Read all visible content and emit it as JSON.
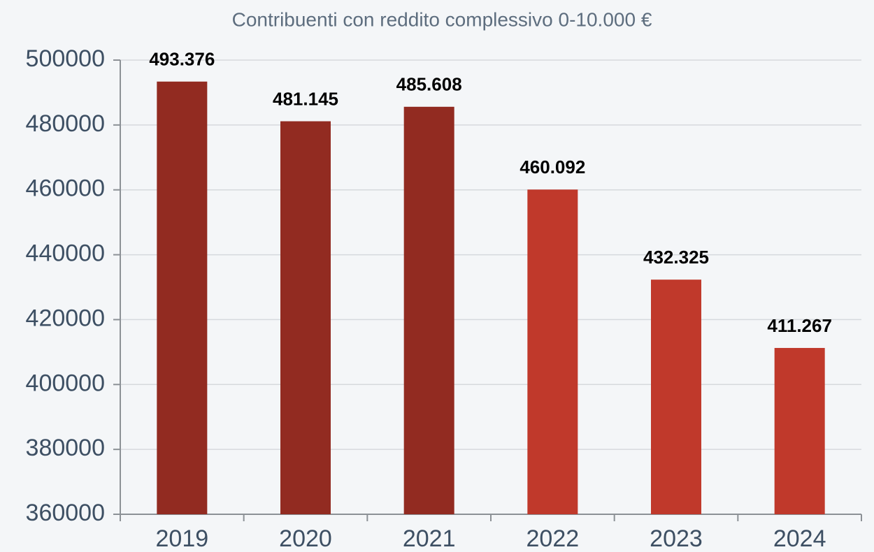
{
  "chart_data": {
    "type": "bar",
    "title": "Contribuenti con reddito complessivo 0-10.000 €",
    "categories": [
      "2019",
      "2020",
      "2021",
      "2022",
      "2023",
      "2024"
    ],
    "values": [
      493376,
      481145,
      485608,
      460092,
      432325,
      411267
    ],
    "value_labels": [
      "493.376",
      "481.145",
      "485.608",
      "460.092",
      "432.325",
      "411.267"
    ],
    "colors": [
      "#922b21",
      "#922b21",
      "#922b21",
      "#c0392b",
      "#c0392b",
      "#c0392b"
    ],
    "ylim": [
      360000,
      500000
    ],
    "yticks": [
      360000,
      380000,
      400000,
      420000,
      440000,
      460000,
      480000,
      500000
    ],
    "grid": true
  }
}
